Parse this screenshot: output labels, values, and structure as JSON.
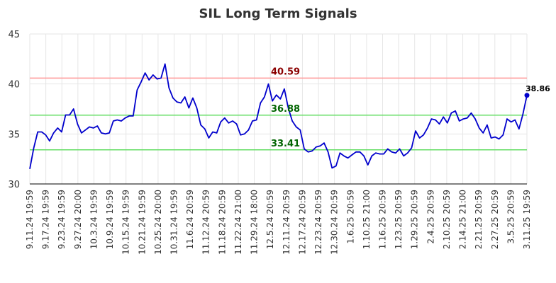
{
  "chart_data": {
    "type": "line",
    "title": "SIL Long Term Signals",
    "xlabel": "",
    "ylabel": "",
    "ylim": [
      30,
      45
    ],
    "yticks": [
      30,
      35,
      40,
      45
    ],
    "grid": true,
    "xtick_labels": [
      "9.11.24 19:59",
      "9.17.24 19:59",
      "9.23.24 19:59",
      "9.27.24 20:00",
      "10.3.24 19:59",
      "10.9.24 19:59",
      "10.15.24 19:59",
      "10.21.24 19:59",
      "10.25.24 20:00",
      "10.31.24 19:59",
      "11.6.24 20:59",
      "11.12.24 20:59",
      "11.18.24 20:59",
      "11.22.24 21:00",
      "11.29.24 18:00",
      "12.5.24 20:59",
      "12.11.24 20:59",
      "12.17.24 20:59",
      "12.23.24 20:59",
      "12.30.24 20:59",
      "1.6.25 20:59",
      "1.10.25 21:00",
      "1.16.25 20:59",
      "1.23.25 20:59",
      "1.29.25 20:59",
      "2.4.25 20:59",
      "2.10.25 20:59",
      "2.14.25 21:00",
      "2.21.25 20:59",
      "2.27.25 20:59",
      "3.5.25 20:59",
      "3.11.25 19:59"
    ],
    "series": [
      {
        "color": "#0000cc",
        "values": [
          31.5,
          33.6,
          35.2,
          35.2,
          34.9,
          34.3,
          35.1,
          35.6,
          35.2,
          36.9,
          36.9,
          37.5,
          36.0,
          35.1,
          35.4,
          35.7,
          35.6,
          35.8,
          35.1,
          35.0,
          35.1,
          36.3,
          36.4,
          36.3,
          36.6,
          36.8,
          36.8,
          39.4,
          40.2,
          41.1,
          40.4,
          40.9,
          40.5,
          40.6,
          42.0,
          39.6,
          38.6,
          38.2,
          38.1,
          38.7,
          37.6,
          38.6,
          37.6,
          35.9,
          35.5,
          34.6,
          35.2,
          35.1,
          36.2,
          36.6,
          36.1,
          36.3,
          36.0,
          34.9,
          35.0,
          35.4,
          36.3,
          36.4,
          38.1,
          38.7,
          40.0,
          38.3,
          38.9,
          38.5,
          39.5,
          37.6,
          36.3,
          35.7,
          35.4,
          33.5,
          33.2,
          33.3,
          33.7,
          33.8,
          34.1,
          33.2,
          31.6,
          31.8,
          33.1,
          32.8,
          32.6,
          32.9,
          33.2,
          33.2,
          32.8,
          31.9,
          32.8,
          33.1,
          33.0,
          33.0,
          33.5,
          33.2,
          33.1,
          33.5,
          32.8,
          33.1,
          33.6,
          35.3,
          34.6,
          34.9,
          35.6,
          36.5,
          36.4,
          36.0,
          36.7,
          36.1,
          37.1,
          37.3,
          36.3,
          36.5,
          36.6,
          37.1,
          36.5,
          35.6,
          35.1,
          35.9,
          34.6,
          34.7,
          34.5,
          34.9,
          36.5,
          36.2,
          36.4,
          35.5,
          37.0,
          38.86
        ]
      }
    ],
    "horizontal_lines": [
      {
        "value": 40.59,
        "label": "40.59",
        "color": "#ff9999",
        "label_color": "#8b0000"
      },
      {
        "value": 36.88,
        "label": "36.88",
        "color": "#66dd66",
        "label_color": "#006400"
      },
      {
        "value": 33.41,
        "label": "33.41",
        "color": "#66dd66",
        "label_color": "#006400"
      }
    ],
    "last_value_label": "38.86",
    "colors": {
      "line": "#0000cc",
      "grid": "#e6e6e6",
      "axis": "#000000",
      "resistance": "#ff9999",
      "support": "#66dd66"
    }
  }
}
